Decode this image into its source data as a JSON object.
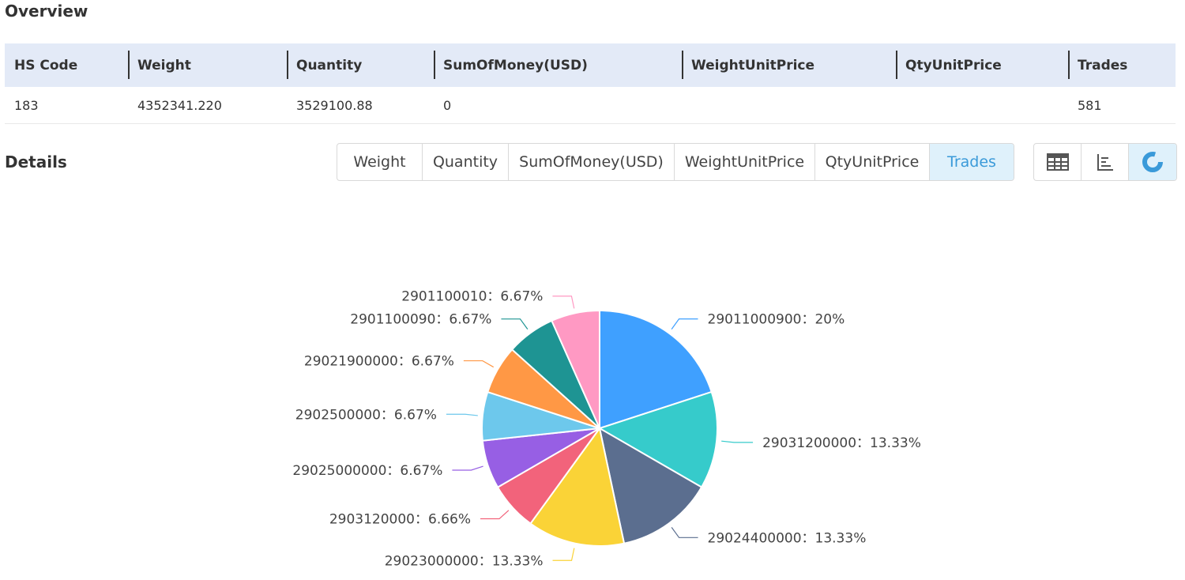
{
  "overview": {
    "title": "Overview",
    "columns": [
      "HS Code",
      "Weight",
      "Quantity",
      "SumOfMoney(USD)",
      "WeightUnitPrice",
      "QtyUnitPrice",
      "Trades"
    ],
    "row": [
      "183",
      "4352341.220",
      "3529100.88",
      "0",
      "",
      "",
      "581"
    ]
  },
  "details": {
    "title": "Details",
    "tabs": [
      "Weight",
      "Quantity",
      "SumOfMoney(USD)",
      "WeightUnitPrice",
      "QtyUnitPrice",
      "Trades"
    ],
    "active_tab": "Trades",
    "views": [
      {
        "icon": "table-icon",
        "active": false
      },
      {
        "icon": "bar-chart-icon",
        "active": false
      },
      {
        "icon": "pie-chart-icon",
        "active": true
      }
    ]
  },
  "colors": {
    "accent": "#3a9ad9",
    "header_bg": "#e3eaf7",
    "active_bg": "#dff1fb"
  },
  "chart_data": {
    "type": "pie",
    "slices": [
      {
        "label": "29011000900",
        "value": 20,
        "text": "29011000900：20%",
        "color": "#3fa0ff"
      },
      {
        "label": "29031200000",
        "value": 13.33,
        "text": "29031200000：13.33%",
        "color": "#36cbcb"
      },
      {
        "label": "29024400000",
        "value": 13.33,
        "text": "29024400000：13.33%",
        "color": "#5b6e8f"
      },
      {
        "label": "29023000000",
        "value": 13.33,
        "text": "29023000000：13.33%",
        "color": "#fad337"
      },
      {
        "label": "2903120000",
        "value": 6.66,
        "text": "2903120000：6.66%",
        "color": "#f2637b"
      },
      {
        "label": "29025000000",
        "value": 6.67,
        "text": "29025000000：6.67%",
        "color": "#975fe4"
      },
      {
        "label": "2902500000",
        "value": 6.67,
        "text": "2902500000：6.67%",
        "color": "#6dc8ec"
      },
      {
        "label": "29021900000",
        "value": 6.67,
        "text": "29021900000：6.67%",
        "color": "#ff9845"
      },
      {
        "label": "2901100090",
        "value": 6.67,
        "text": "2901100090：6.67%",
        "color": "#1e9493"
      },
      {
        "label": "2901100010",
        "value": 6.67,
        "text": "2901100010：6.67%",
        "color": "#ff99c3"
      }
    ]
  }
}
